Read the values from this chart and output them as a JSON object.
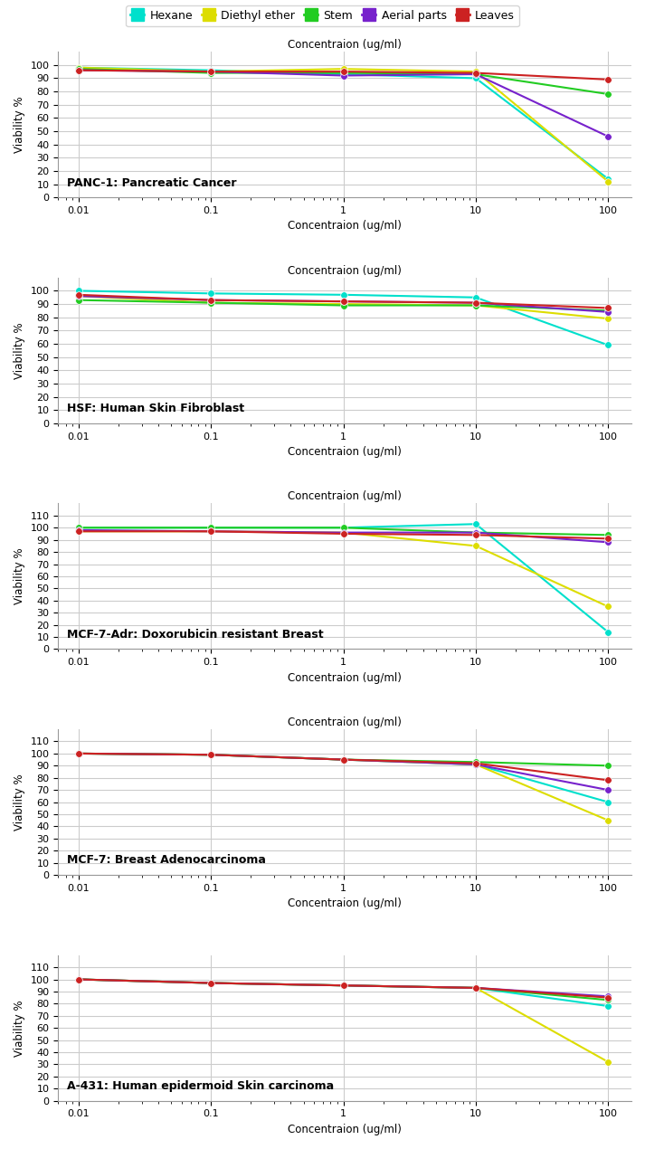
{
  "x_values": [
    0.01,
    0.1,
    1,
    10,
    100
  ],
  "legend_labels": [
    "Hexane",
    "Diethyl ether",
    "Stem",
    "Aerial parts",
    "Leaves"
  ],
  "legend_colors": [
    "#00e0cc",
    "#dddd00",
    "#22cc22",
    "#7722cc",
    "#cc2222"
  ],
  "subplots": [
    {
      "title": "PANC-1: Pancreatic Cancer",
      "ylim": [
        0,
        110
      ],
      "yticks": [
        0,
        10,
        20,
        30,
        40,
        50,
        60,
        70,
        80,
        90,
        100
      ],
      "series": [
        {
          "color": "#00e0cc",
          "values": [
            98,
            96,
            93,
            90,
            14
          ]
        },
        {
          "color": "#dddd00",
          "values": [
            98,
            95,
            97,
            95,
            12
          ]
        },
        {
          "color": "#22cc22",
          "values": [
            97,
            94,
            94,
            93,
            78
          ]
        },
        {
          "color": "#7722cc",
          "values": [
            96,
            95,
            92,
            93,
            46
          ]
        },
        {
          "color": "#cc2222",
          "values": [
            96,
            95,
            95,
            94,
            89
          ]
        }
      ]
    },
    {
      "title": "HSF: Human Skin Fibroblast",
      "ylim": [
        0,
        110
      ],
      "yticks": [
        0,
        10,
        20,
        30,
        40,
        50,
        60,
        70,
        80,
        90,
        100
      ],
      "series": [
        {
          "color": "#00e0cc",
          "values": [
            100,
            98,
            97,
            95,
            59
          ]
        },
        {
          "color": "#dddd00",
          "values": [
            96,
            91,
            90,
            89,
            79
          ]
        },
        {
          "color": "#22cc22",
          "values": [
            93,
            91,
            89,
            89,
            85
          ]
        },
        {
          "color": "#7722cc",
          "values": [
            96,
            93,
            92,
            91,
            84
          ]
        },
        {
          "color": "#cc2222",
          "values": [
            97,
            93,
            92,
            91,
            87
          ]
        }
      ]
    },
    {
      "title": "MCF-7-Adr: Doxorubicin resistant Breast",
      "ylim": [
        0,
        120
      ],
      "yticks": [
        0,
        10,
        20,
        30,
        40,
        50,
        60,
        70,
        80,
        90,
        100,
        110
      ],
      "series": [
        {
          "color": "#00e0cc",
          "values": [
            100,
            100,
            100,
            103,
            14
          ]
        },
        {
          "color": "#dddd00",
          "values": [
            97,
            97,
            96,
            85,
            35
          ]
        },
        {
          "color": "#22cc22",
          "values": [
            100,
            100,
            100,
            96,
            94
          ]
        },
        {
          "color": "#7722cc",
          "values": [
            98,
            97,
            96,
            96,
            88
          ]
        },
        {
          "color": "#cc2222",
          "values": [
            97,
            97,
            95,
            94,
            91
          ]
        }
      ]
    },
    {
      "title": "MCF-7: Breast Adenocarcinoma",
      "ylim": [
        0,
        120
      ],
      "yticks": [
        0,
        10,
        20,
        30,
        40,
        50,
        60,
        70,
        80,
        90,
        100,
        110
      ],
      "series": [
        {
          "color": "#00e0cc",
          "values": [
            100,
            99,
            95,
            91,
            60
          ]
        },
        {
          "color": "#dddd00",
          "values": [
            100,
            99,
            95,
            91,
            45
          ]
        },
        {
          "color": "#22cc22",
          "values": [
            100,
            99,
            95,
            93,
            90
          ]
        },
        {
          "color": "#7722cc",
          "values": [
            100,
            99,
            95,
            91,
            70
          ]
        },
        {
          "color": "#cc2222",
          "values": [
            100,
            99,
            95,
            92,
            78
          ]
        }
      ]
    },
    {
      "title": "A-431: Human epidermoid Skin carcinoma",
      "ylim": [
        0,
        120
      ],
      "yticks": [
        0,
        10,
        20,
        30,
        40,
        50,
        60,
        70,
        80,
        90,
        100,
        110
      ],
      "series": [
        {
          "color": "#00e0cc",
          "values": [
            100,
            97,
            95,
            93,
            78
          ]
        },
        {
          "color": "#dddd00",
          "values": [
            100,
            97,
            95,
            93,
            32
          ]
        },
        {
          "color": "#22cc22",
          "values": [
            100,
            97,
            95,
            93,
            83
          ]
        },
        {
          "color": "#7722cc",
          "values": [
            100,
            97,
            95,
            93,
            86
          ]
        },
        {
          "color": "#cc2222",
          "values": [
            100,
            97,
            95,
            93,
            85
          ]
        }
      ]
    }
  ],
  "xlabel": "Concentraion (ug/ml)",
  "ylabel": "Viability %",
  "background_color": "#ffffff",
  "grid_color": "#cccccc",
  "title_fontsize": 9,
  "label_fontsize": 8.5,
  "tick_fontsize": 8,
  "legend_fontsize": 9
}
